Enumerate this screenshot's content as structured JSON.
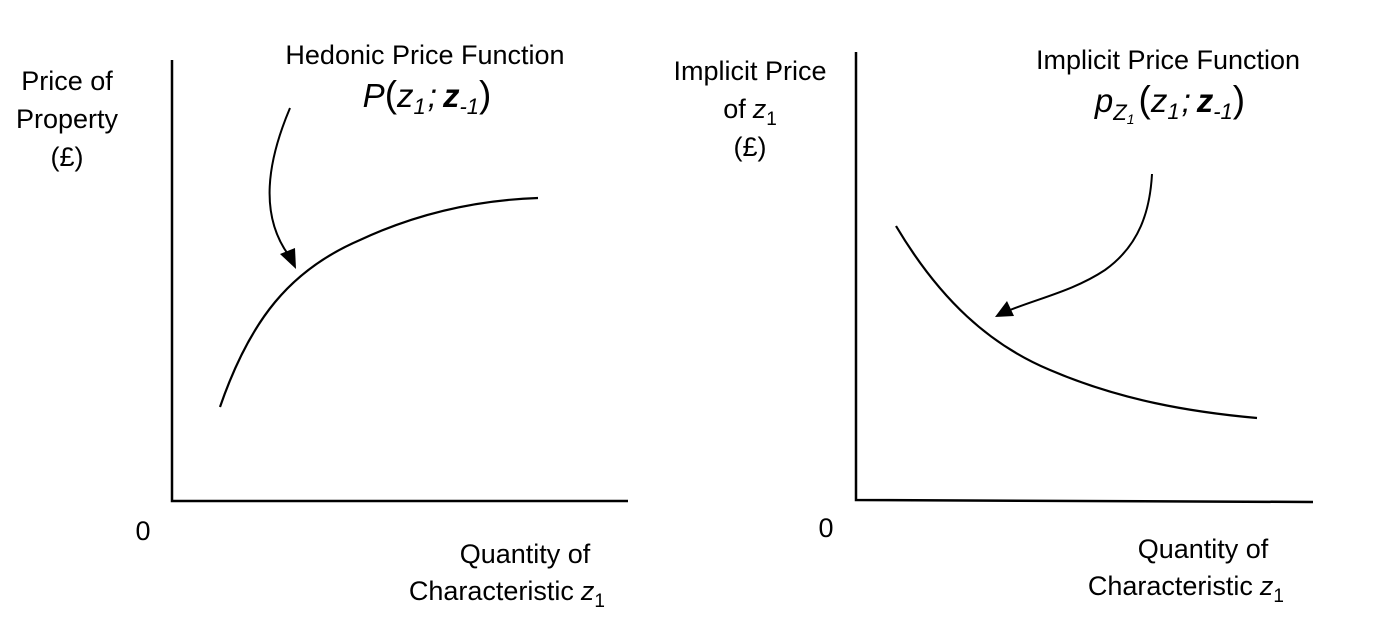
{
  "left_panel": {
    "y_label": [
      "Price of",
      "Property",
      "(£)"
    ],
    "origin": "0",
    "x_label": {
      "line1": "Quantity of",
      "line2": "Characteristic",
      "var": "z",
      "sub": "1"
    },
    "function_title": "Hedonic Price Function",
    "function_formula": {
      "fn": "P",
      "open": "(",
      "arg1": "z",
      "arg1_sub": "1",
      "sep": ";",
      "arg2": "z",
      "arg2_sub": "-1",
      "close": ")"
    }
  },
  "right_panel": {
    "y_label": {
      "line1": "Implicit Price",
      "line2_prefix": "of",
      "line2_var": "z",
      "line2_sub": "1",
      "line3": "(£)"
    },
    "origin": "0",
    "x_label": {
      "line1": "Quantity of",
      "line2": "Characteristic",
      "var": "z",
      "sub": "1"
    },
    "function_title": "Implicit Price Function",
    "function_formula": {
      "fn": "p",
      "fn_sub": "Z",
      "fn_subsub": "1",
      "open": "(",
      "arg1": "z",
      "arg1_sub": "1",
      "sep": ";",
      "arg2": "z",
      "arg2_sub": "-1",
      "close": ")"
    }
  }
}
